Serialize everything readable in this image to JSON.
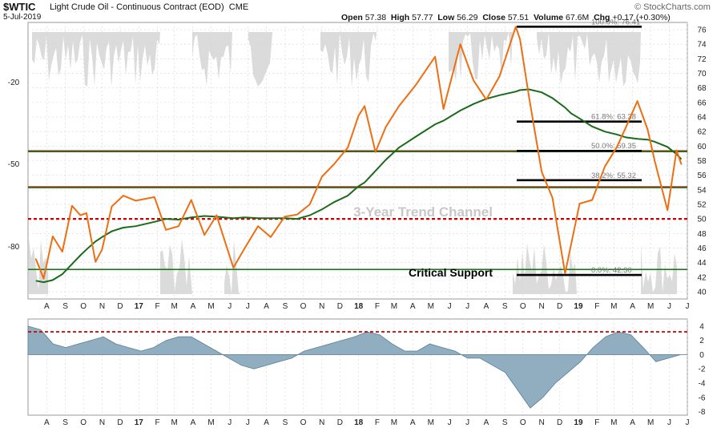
{
  "header": {
    "symbol": "$WTIC",
    "name": "Light Crude Oil - Continuous Contract (EOD)",
    "exchange": "CME",
    "date": "5-Jul-2019",
    "open_label": "Open",
    "open": "57.38",
    "high_label": "High",
    "high": "57.77",
    "low_label": "Low",
    "low": "56.29",
    "close_label": "Close",
    "close": "57.51",
    "volume_label": "Volume",
    "volume": "67.6M",
    "chg_label": "Chg",
    "chg": "+0.17 (+0.30%)",
    "watermark": "© StockCharts.com"
  },
  "chart_data": [
    {
      "type": "line",
      "panel": "price",
      "x": [
        "2016-07-28",
        "2016-08-10",
        "2016-08-25",
        "2016-09-10",
        "2016-09-26",
        "2016-10-10",
        "2016-10-20",
        "2016-11-04",
        "2016-11-15",
        "2016-12-01",
        "2016-12-20",
        "2017-01-10",
        "2017-02-10",
        "2017-03-01",
        "2017-03-22",
        "2017-04-12",
        "2017-05-04",
        "2017-05-24",
        "2017-06-21",
        "2017-07-10",
        "2017-08-01",
        "2017-08-22",
        "2017-09-14",
        "2017-10-05",
        "2017-10-26",
        "2017-11-15",
        "2017-12-05",
        "2017-12-28",
        "2018-01-15",
        "2018-01-25",
        "2018-02-12",
        "2018-03-01",
        "2018-03-23",
        "2018-04-20",
        "2018-05-22",
        "2018-06-05",
        "2018-07-03",
        "2018-07-25",
        "2018-08-15",
        "2018-09-06",
        "2018-10-03",
        "2018-10-10",
        "2018-10-25",
        "2018-11-15",
        "2018-12-03",
        "2018-12-24",
        "2019-01-03",
        "2019-01-17",
        "2019-02-07",
        "2019-02-28",
        "2019-03-20",
        "2019-04-04",
        "2019-04-23",
        "2019-05-10",
        "2019-05-22",
        "2019-06-12",
        "2019-06-27",
        "2019-07-05"
      ],
      "series": [
        {
          "values": [
            44.5,
            41.8,
            47.6,
            45.5,
            51.8,
            50.5,
            50.8,
            44.1,
            45.8,
            51.7,
            53.2,
            52.5,
            53.0,
            48.5,
            49.0,
            52.6,
            47.8,
            50.5,
            43.3,
            46.0,
            49.0,
            47.5,
            50.3,
            50.6,
            52.0,
            55.8,
            57.5,
            59.8,
            64.2,
            65.5,
            59.2,
            62.6,
            65.5,
            68.4,
            72.3,
            65.1,
            74.0,
            69.0,
            66.4,
            69.6,
            76.4,
            74.7,
            66.8,
            56.5,
            52.9,
            42.5,
            46.5,
            52.1,
            52.6,
            57.2,
            59.9,
            62.6,
            66.2,
            62.3,
            57.9,
            51.2,
            59.4,
            57.51
          ]
        }
      ],
      "sma_label": "",
      "sma_values": [
        41.5,
        41.3,
        41.6,
        42.4,
        43.8,
        45.0,
        45.8,
        46.9,
        47.5,
        48.3,
        48.8,
        49.0,
        49.6,
        50.0,
        49.9,
        50.2,
        50.4,
        50.3,
        50.1,
        50.2,
        50.1,
        50.1,
        50.1,
        50.0,
        50.5,
        51.3,
        52.3,
        53.2,
        54.5,
        55.0,
        56.6,
        58.1,
        59.8,
        61.3,
        63.0,
        63.5,
        64.9,
        65.8,
        66.5,
        67.0,
        67.5,
        67.7,
        67.8,
        67.4,
        66.6,
        65.3,
        64.5,
        63.8,
        62.7,
        62.0,
        61.6,
        61.2,
        61.0,
        60.9,
        60.6,
        59.9,
        58.9,
        58.2
      ],
      "ylim": [
        39,
        77
      ],
      "y_ticks": [
        40,
        42,
        44,
        46,
        48,
        50,
        52,
        54,
        56,
        58,
        60,
        62,
        64,
        66,
        68,
        70,
        72,
        74,
        76
      ],
      "left_scale_labels": [
        "-20",
        "-50",
        "-80"
      ],
      "x_tick_labels": [
        "A",
        "S",
        "O",
        "N",
        "D",
        "17",
        "F",
        "M",
        "A",
        "M",
        "J",
        "J",
        "A",
        "S",
        "O",
        "N",
        "D",
        "18",
        "F",
        "M",
        "A",
        "M",
        "J",
        "J",
        "A",
        "S",
        "O",
        "N",
        "D",
        "19",
        "F",
        "M",
        "A",
        "M",
        "J",
        "J"
      ],
      "fib_levels": [
        {
          "label": "100.0%: 76.41",
          "value": 76.41
        },
        {
          "label": "61.8%: 63.38",
          "value": 63.38
        },
        {
          "label": "50.0%: 59.35",
          "value": 59.35
        },
        {
          "label": "38.2%: 55.32",
          "value": 55.32
        },
        {
          "label": "0.0%: 42.30",
          "value": 42.3
        }
      ],
      "horizontal_lines": [
        {
          "value": 59.35,
          "color": "#cc0000",
          "style": "solid"
        },
        {
          "value": 59.25,
          "color": "#1a7a1a",
          "style": "solid"
        },
        {
          "value": 54.4,
          "color": "#cc0000",
          "style": "solid"
        },
        {
          "value": 54.3,
          "color": "#1a7a1a",
          "style": "solid"
        },
        {
          "value": 50.0,
          "color": "#cc0000",
          "style": "dotted"
        },
        {
          "value": 43.05,
          "color": "#1a7a1a",
          "style": "solid"
        }
      ],
      "annotations": [
        "3-Year Trend Channel",
        "Critical Support"
      ]
    },
    {
      "type": "area",
      "panel": "oscillator",
      "values": [
        4.0,
        3.5,
        1.5,
        1.0,
        1.5,
        2.0,
        2.5,
        1.5,
        1.0,
        0.5,
        1.0,
        2.0,
        2.5,
        2.5,
        1.5,
        0.5,
        -0.5,
        -1.5,
        -2.0,
        -1.5,
        -1.0,
        -0.5,
        0.5,
        1.0,
        1.5,
        2.0,
        2.5,
        3.2,
        2.8,
        1.5,
        0.5,
        0.5,
        1.5,
        1.0,
        0.5,
        -0.5,
        -0.5,
        -1.5,
        -2.5,
        -5.0,
        -7.5,
        -6.0,
        -4.0,
        -2.5,
        -1.0,
        1.0,
        2.5,
        3.2,
        2.8,
        1.0,
        -1.0,
        -0.5,
        0.0
      ],
      "ylim": [
        -8.5,
        5
      ],
      "y_ticks": [
        -8,
        -6,
        -4,
        -2,
        0,
        2,
        4
      ],
      "threshold": 3.2,
      "x_tick_labels": [
        "A",
        "S",
        "O",
        "N",
        "D",
        "17",
        "F",
        "M",
        "A",
        "M",
        "J",
        "J",
        "A",
        "S",
        "O",
        "N",
        "D",
        "18",
        "F",
        "M",
        "A",
        "M",
        "J",
        "J",
        "A",
        "S",
        "O",
        "N",
        "D",
        "19",
        "F",
        "M",
        "A",
        "M",
        "J",
        "J"
      ]
    }
  ],
  "colors": {
    "price_line": "#ee6e12",
    "sma_line": "#1a6b1a",
    "resistance": "#cc0000",
    "support": "#1a7a1a",
    "osc_fill": "#90aec0",
    "osc_stroke": "#5a7f96",
    "shading": "#d2d2d2",
    "grid": "#d6d6d6"
  }
}
